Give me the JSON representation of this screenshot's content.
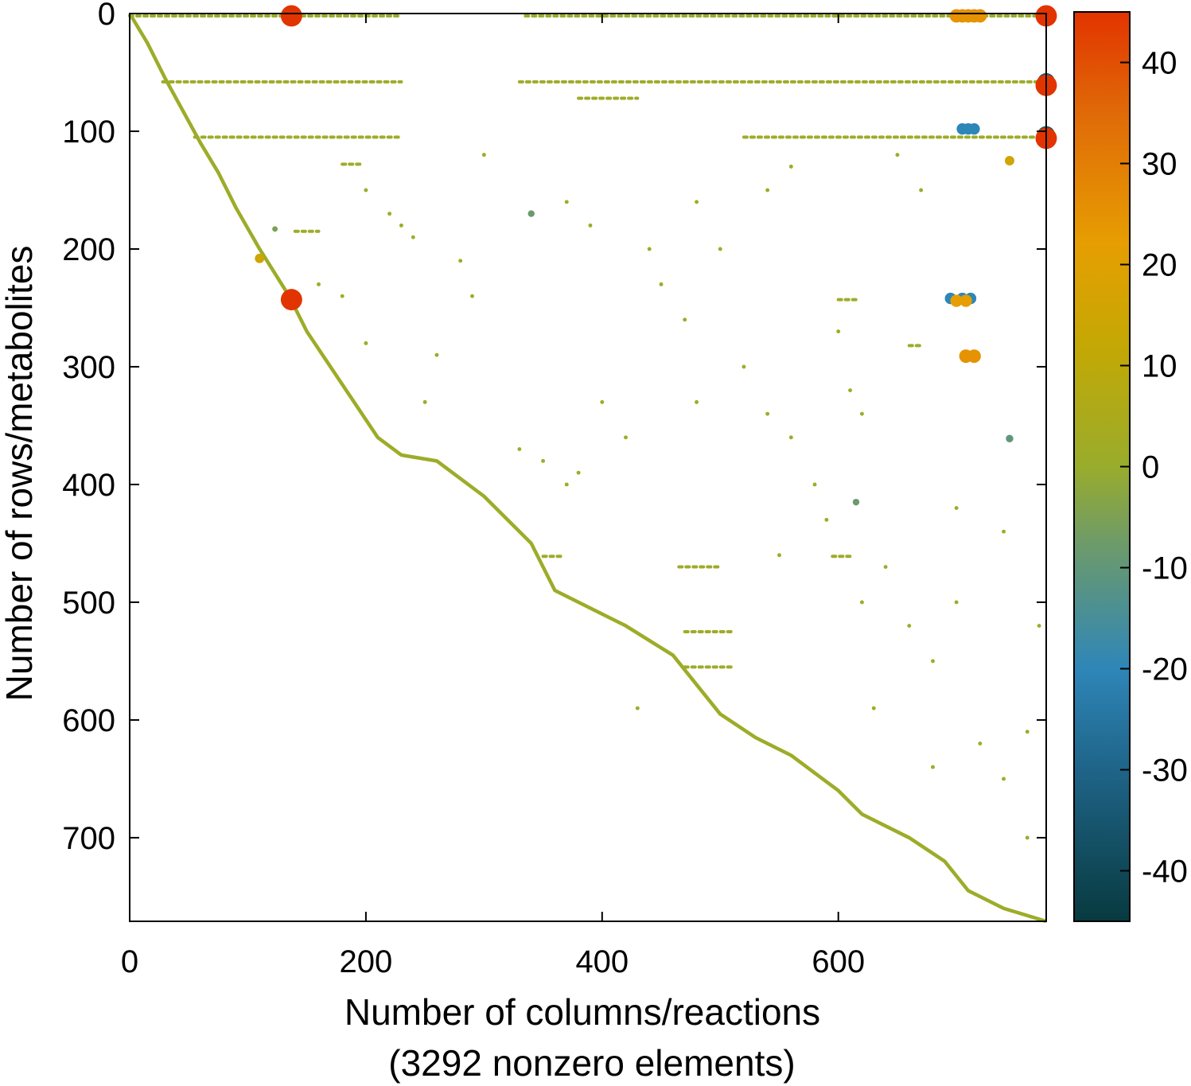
{
  "chart_data": {
    "type": "scatter",
    "title": "",
    "xlabel": "Number of columns/reactions",
    "xlabel_line2": "(3292 nonzero elements)",
    "ylabel": "Number of rows/metabolites",
    "xlim": [
      0,
      776
    ],
    "ylim": [
      771,
      0
    ],
    "y_inverted": true,
    "grid": false,
    "xticks": [
      0,
      200,
      400,
      600
    ],
    "yticks": [
      0,
      100,
      200,
      300,
      400,
      500,
      600,
      700
    ],
    "colorbar": {
      "range": [
        -45,
        45
      ],
      "ticks": [
        40,
        30,
        20,
        10,
        0,
        -10,
        -20,
        -30,
        -40
      ],
      "colors": [
        {
          "v": -45,
          "c": "#083a3f"
        },
        {
          "v": -30,
          "c": "#1f6488"
        },
        {
          "v": -20,
          "c": "#2e86b8"
        },
        {
          "v": -8,
          "c": "#6b9a6c"
        },
        {
          "v": 0,
          "c": "#99ac2c"
        },
        {
          "v": 12,
          "c": "#c4a804"
        },
        {
          "v": 22,
          "c": "#e69e02"
        },
        {
          "v": 35,
          "c": "#e06a08"
        },
        {
          "v": 45,
          "c": "#e23400"
        }
      ]
    },
    "default_value": 1,
    "diagonal": [
      [
        0,
        0
      ],
      [
        15,
        25
      ],
      [
        30,
        55
      ],
      [
        60,
        110
      ],
      [
        75,
        135
      ],
      [
        90,
        165
      ],
      [
        110,
        200
      ],
      [
        135,
        240
      ],
      [
        150,
        270
      ],
      [
        170,
        300
      ],
      [
        190,
        330
      ],
      [
        210,
        360
      ],
      [
        230,
        375
      ],
      [
        260,
        380
      ],
      [
        300,
        410
      ],
      [
        340,
        450
      ],
      [
        360,
        490
      ],
      [
        400,
        510
      ],
      [
        420,
        520
      ],
      [
        460,
        545
      ],
      [
        500,
        595
      ],
      [
        530,
        615
      ],
      [
        560,
        630
      ],
      [
        600,
        660
      ],
      [
        620,
        680
      ],
      [
        660,
        700
      ],
      [
        690,
        720
      ],
      [
        710,
        745
      ],
      [
        740,
        760
      ],
      [
        776,
        771
      ]
    ],
    "row_segments": [
      {
        "row": 2,
        "x": [
          0,
          230
        ]
      },
      {
        "row": 2,
        "x": [
          335,
          776
        ]
      },
      {
        "row": 58,
        "x": [
          28,
          230
        ]
      },
      {
        "row": 58,
        "x": [
          330,
          776
        ]
      },
      {
        "row": 72,
        "x": [
          380,
          430
        ]
      },
      {
        "row": 105,
        "x": [
          55,
          230
        ]
      },
      {
        "row": 105,
        "x": [
          520,
          776
        ]
      },
      {
        "row": 128,
        "x": [
          180,
          195
        ]
      },
      {
        "row": 185,
        "x": [
          140,
          160
        ]
      },
      {
        "row": 243,
        "x": [
          600,
          615
        ]
      },
      {
        "row": 282,
        "x": [
          660,
          670
        ]
      },
      {
        "row": 461,
        "x": [
          350,
          365
        ]
      },
      {
        "row": 461,
        "x": [
          595,
          610
        ]
      },
      {
        "row": 470,
        "x": [
          465,
          500
        ]
      },
      {
        "row": 525,
        "x": [
          470,
          510
        ]
      },
      {
        "row": 555,
        "x": [
          470,
          510
        ]
      }
    ],
    "points": [
      [
        137,
        2,
        45
      ],
      [
        776,
        2,
        45
      ],
      [
        776,
        58,
        -35
      ],
      [
        776,
        61,
        45
      ],
      [
        776,
        103,
        -35
      ],
      [
        776,
        106,
        45
      ],
      [
        137,
        243,
        45
      ],
      [
        110,
        208,
        15
      ],
      [
        123,
        183,
        -5
      ],
      [
        745,
        125,
        15
      ],
      [
        745,
        361,
        -10
      ],
      [
        340,
        170,
        -8
      ],
      [
        615,
        415,
        -8
      ],
      [
        700,
        2,
        25
      ],
      [
        705,
        2,
        25
      ],
      [
        710,
        2,
        25
      ],
      [
        715,
        2,
        25
      ],
      [
        720,
        2,
        25
      ],
      [
        705,
        98,
        -20
      ],
      [
        710,
        98,
        -20
      ],
      [
        715,
        98,
        -20
      ],
      [
        695,
        242,
        -20
      ],
      [
        705,
        242,
        -20
      ],
      [
        712,
        242,
        -20
      ],
      [
        700,
        244,
        22
      ],
      [
        708,
        244,
        22
      ],
      [
        708,
        291,
        25
      ],
      [
        715,
        291,
        25
      ],
      [
        160,
        230,
        1
      ],
      [
        180,
        240,
        1
      ],
      [
        200,
        150,
        1
      ],
      [
        220,
        170,
        1
      ],
      [
        230,
        180,
        1
      ],
      [
        240,
        190,
        1
      ],
      [
        260,
        290,
        1
      ],
      [
        280,
        210,
        1
      ],
      [
        330,
        370,
        1
      ],
      [
        350,
        380,
        1
      ],
      [
        370,
        400,
        1
      ],
      [
        380,
        390,
        1
      ],
      [
        400,
        330,
        1
      ],
      [
        420,
        360,
        1
      ],
      [
        440,
        200,
        1
      ],
      [
        450,
        230,
        1
      ],
      [
        470,
        260,
        1
      ],
      [
        480,
        330,
        1
      ],
      [
        500,
        200,
        1
      ],
      [
        520,
        300,
        1
      ],
      [
        540,
        340,
        1
      ],
      [
        560,
        360,
        1
      ],
      [
        580,
        400,
        1
      ],
      [
        590,
        430,
        1
      ],
      [
        610,
        320,
        1
      ],
      [
        620,
        340,
        1
      ],
      [
        640,
        470,
        1
      ],
      [
        660,
        520,
        1
      ],
      [
        680,
        550,
        1
      ],
      [
        700,
        500,
        1
      ],
      [
        720,
        620,
        1
      ],
      [
        740,
        650,
        1
      ],
      [
        760,
        700,
        1
      ],
      [
        770,
        520,
        1
      ],
      [
        650,
        120,
        1
      ],
      [
        670,
        150,
        1
      ],
      [
        540,
        150,
        1
      ],
      [
        560,
        130,
        1
      ],
      [
        600,
        270,
        1
      ],
      [
        630,
        590,
        1
      ],
      [
        680,
        640,
        1
      ],
      [
        700,
        420,
        1
      ],
      [
        740,
        440,
        1
      ],
      [
        760,
        610,
        1
      ],
      [
        430,
        590,
        1
      ],
      [
        550,
        460,
        1
      ],
      [
        620,
        500,
        1
      ],
      [
        480,
        160,
        1
      ],
      [
        390,
        180,
        1
      ],
      [
        370,
        160,
        1
      ],
      [
        300,
        120,
        1
      ],
      [
        290,
        240,
        1
      ],
      [
        250,
        330,
        1
      ],
      [
        200,
        280,
        1
      ]
    ]
  }
}
